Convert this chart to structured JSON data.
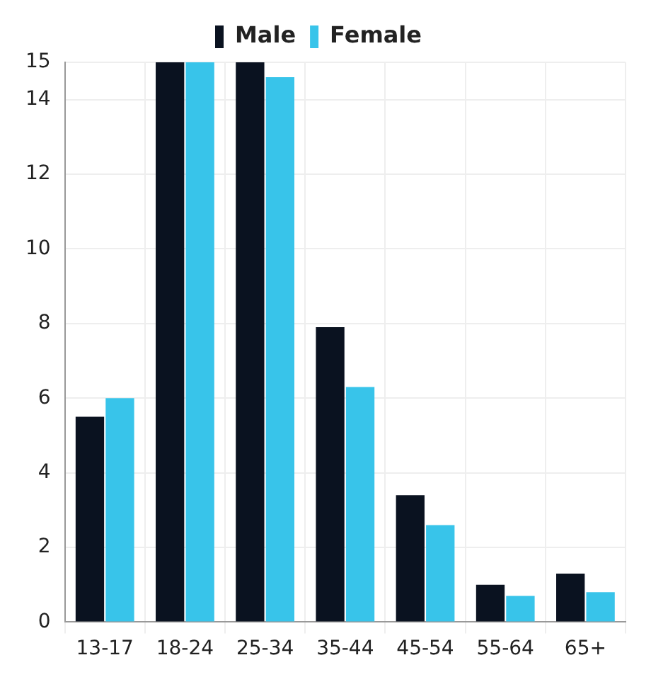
{
  "chart_data": {
    "type": "bar",
    "categories": [
      "13-17",
      "18-24",
      "25-34",
      "35-44",
      "45-54",
      "55-64",
      "65+"
    ],
    "series": [
      {
        "name": "Male",
        "color": "#0a1220",
        "values": [
          5.5,
          15,
          15,
          7.9,
          3.4,
          1.0,
          1.3
        ]
      },
      {
        "name": "Female",
        "color": "#38c4ea",
        "values": [
          6.0,
          15,
          14.6,
          6.3,
          2.6,
          0.7,
          0.8
        ]
      }
    ],
    "ylim": [
      0,
      15
    ],
    "yticks": [
      0,
      2,
      4,
      6,
      8,
      10,
      12,
      14,
      15
    ],
    "grid": true,
    "legend": "top"
  }
}
